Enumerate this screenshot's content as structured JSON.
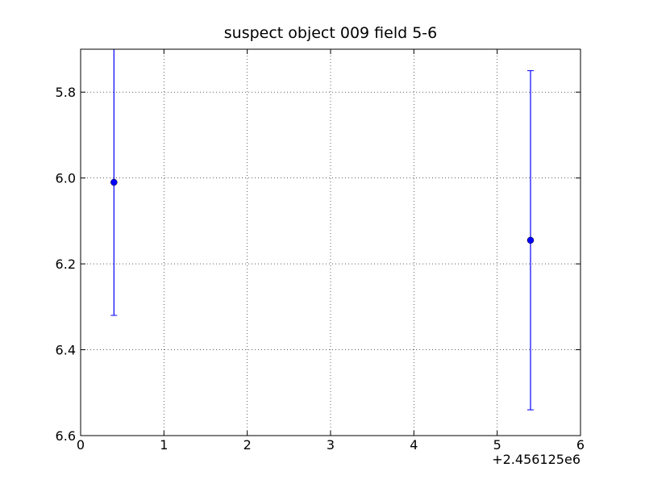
{
  "chart_data": {
    "type": "errorbar",
    "title": "suspect object 009 field 5-6",
    "x_offset_label": "+2.456125e6",
    "series": [
      {
        "color": "#0000ff",
        "x": [
          0.4,
          5.4
        ],
        "values": [
          6.01,
          6.145
        ],
        "errors": [
          0.31,
          0.395
        ]
      }
    ],
    "xlim": [
      0,
      6
    ],
    "xticks": [
      0,
      1,
      2,
      3,
      4,
      5,
      6
    ],
    "ylim": [
      5.7,
      6.6
    ],
    "invert_y": true,
    "yticks": [
      5.8,
      {
        "value": 6,
        "label": "6.0"
      },
      6.2,
      6.4,
      6.6
    ],
    "grid": true
  }
}
